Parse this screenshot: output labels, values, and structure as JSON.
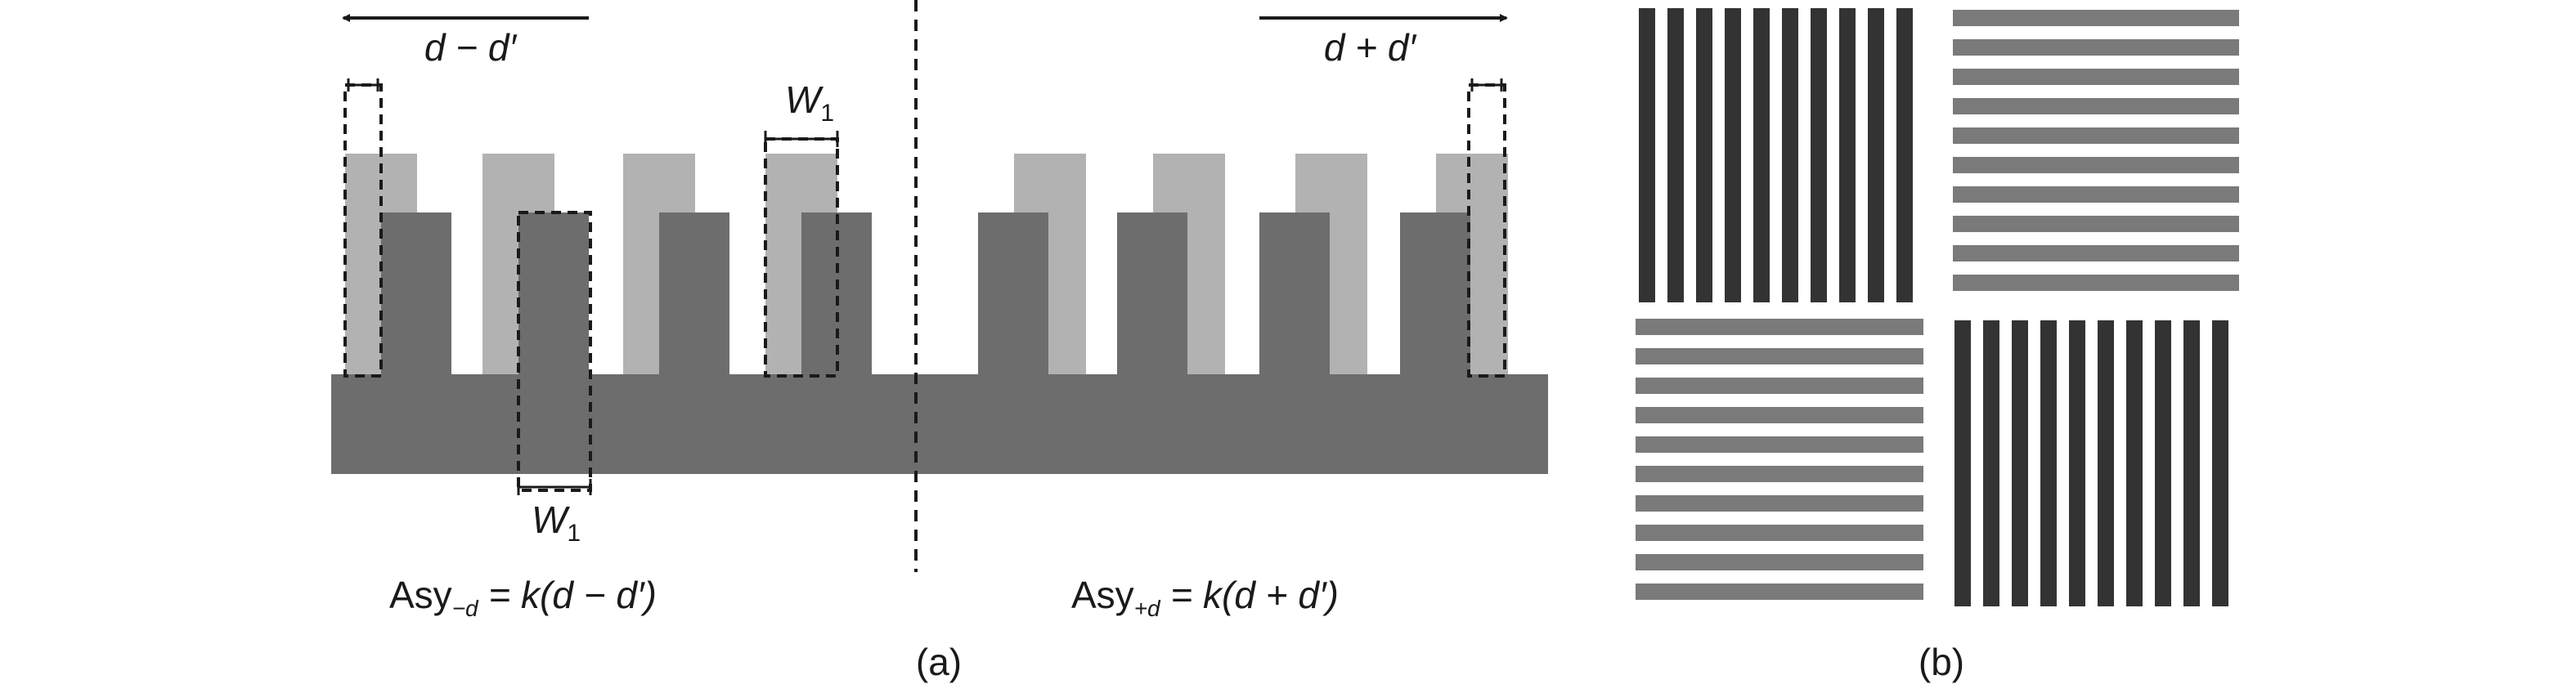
{
  "panel_a": {
    "arrow_left_label": "d − d′",
    "arrow_right_label": "d + d′",
    "width_label_top": {
      "main": "W",
      "sub": "1"
    },
    "width_label_bottom": {
      "main": "W",
      "sub": "1"
    },
    "formula_left": {
      "prefix": "Asy",
      "sub": "−d",
      "body": " = k(d − d′)"
    },
    "formula_right": {
      "prefix": "Asy",
      "sub": "+d",
      "body": " = k(d + d′)"
    },
    "caption": "(a)"
  },
  "panel_b": {
    "caption": "(b)"
  },
  "colors": {
    "dark_grating": "#6d6d6d",
    "light_grating": "#b2b2b2",
    "dark_bar": "#333333",
    "gray_bar": "#7a7a7a"
  }
}
